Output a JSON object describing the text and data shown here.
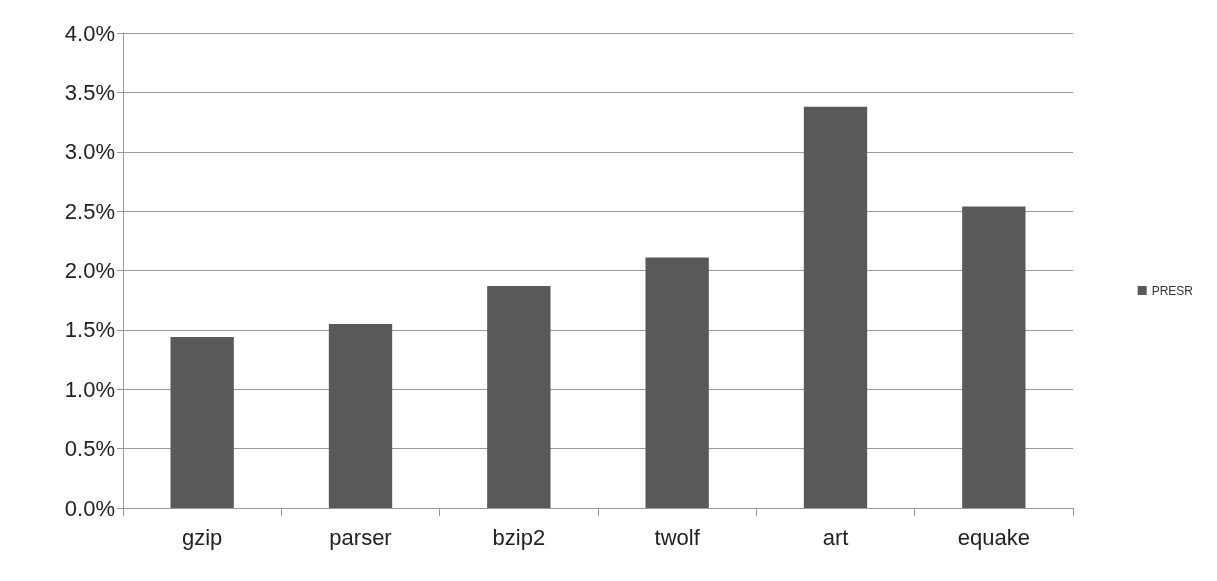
{
  "chart_data": {
    "type": "bar",
    "categories": [
      "gzip",
      "parser",
      "bzip2",
      "twolf",
      "art",
      "equake"
    ],
    "series": [
      {
        "name": "PRESR",
        "color": "#595959",
        "values": [
          1.44,
          1.55,
          1.87,
          2.11,
          3.38,
          2.54
        ]
      }
    ],
    "ylim": [
      0,
      4
    ],
    "yticks": [
      {
        "value": 0,
        "label": "0.0%"
      },
      {
        "value": 0.5,
        "label": "0.5%"
      },
      {
        "value": 1,
        "label": "1.0%"
      },
      {
        "value": 1.5,
        "label": "1.5%"
      },
      {
        "value": 2,
        "label": "2.0%"
      },
      {
        "value": 2.5,
        "label": "2.5%"
      },
      {
        "value": 3,
        "label": "3.0%"
      },
      {
        "value": 3.5,
        "label": "3.5%"
      },
      {
        "value": 4,
        "label": "4.0%"
      }
    ],
    "grid": "y",
    "legend": "right"
  }
}
